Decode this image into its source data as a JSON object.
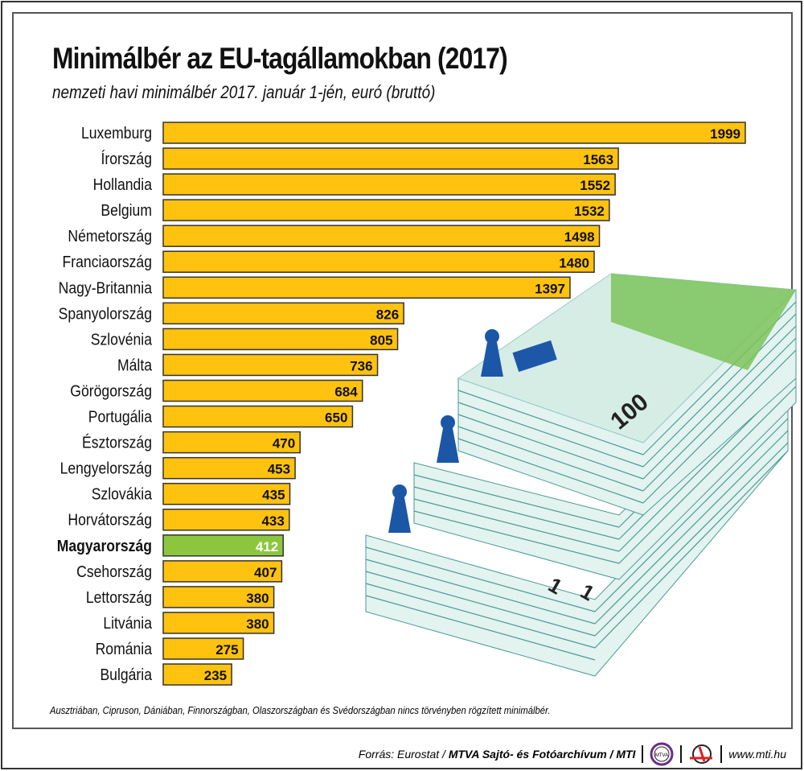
{
  "chart_data": {
    "type": "bar",
    "orientation": "horizontal",
    "title": "Minimálbér az EU-tagállamokban (2017)",
    "subtitle": "nemzeti havi minimálbér 2017. január 1-jén, euró (bruttó)",
    "categories": [
      "Luxemburg",
      "Írország",
      "Hollandia",
      "Belgium",
      "Németország",
      "Franciaország",
      "Nagy-Britannia",
      "Spanyolország",
      "Szlovénia",
      "Málta",
      "Görögország",
      "Portugália",
      "Észtország",
      "Lengyelország",
      "Szlovákia",
      "Horvátország",
      "Magyarország",
      "Csehország",
      "Lettország",
      "Litvánia",
      "Románia",
      "Bulgária"
    ],
    "values": [
      1999,
      1563,
      1552,
      1532,
      1498,
      1480,
      1397,
      826,
      805,
      736,
      684,
      650,
      470,
      453,
      435,
      433,
      412,
      407,
      380,
      380,
      275,
      235
    ],
    "highlight": "Magyarország",
    "colors": {
      "bar": "#ffc20e",
      "highlight": "#8cc63f",
      "border": "#333333"
    },
    "grid": false,
    "xlim": [
      0,
      2000
    ]
  },
  "note": "Ausztriában, Cipruson, Dániában, Finnországban, Olaszországban és Svédországban nincs törvényben rögzített minimálbér.",
  "footer": {
    "source_prefix": "Forrás: Eurostat / ",
    "source_bold": "MTVA Sajtó- és Fotóarchívum / MTI",
    "mtva_logo": "MTVA",
    "website": "www.mti.hu"
  }
}
